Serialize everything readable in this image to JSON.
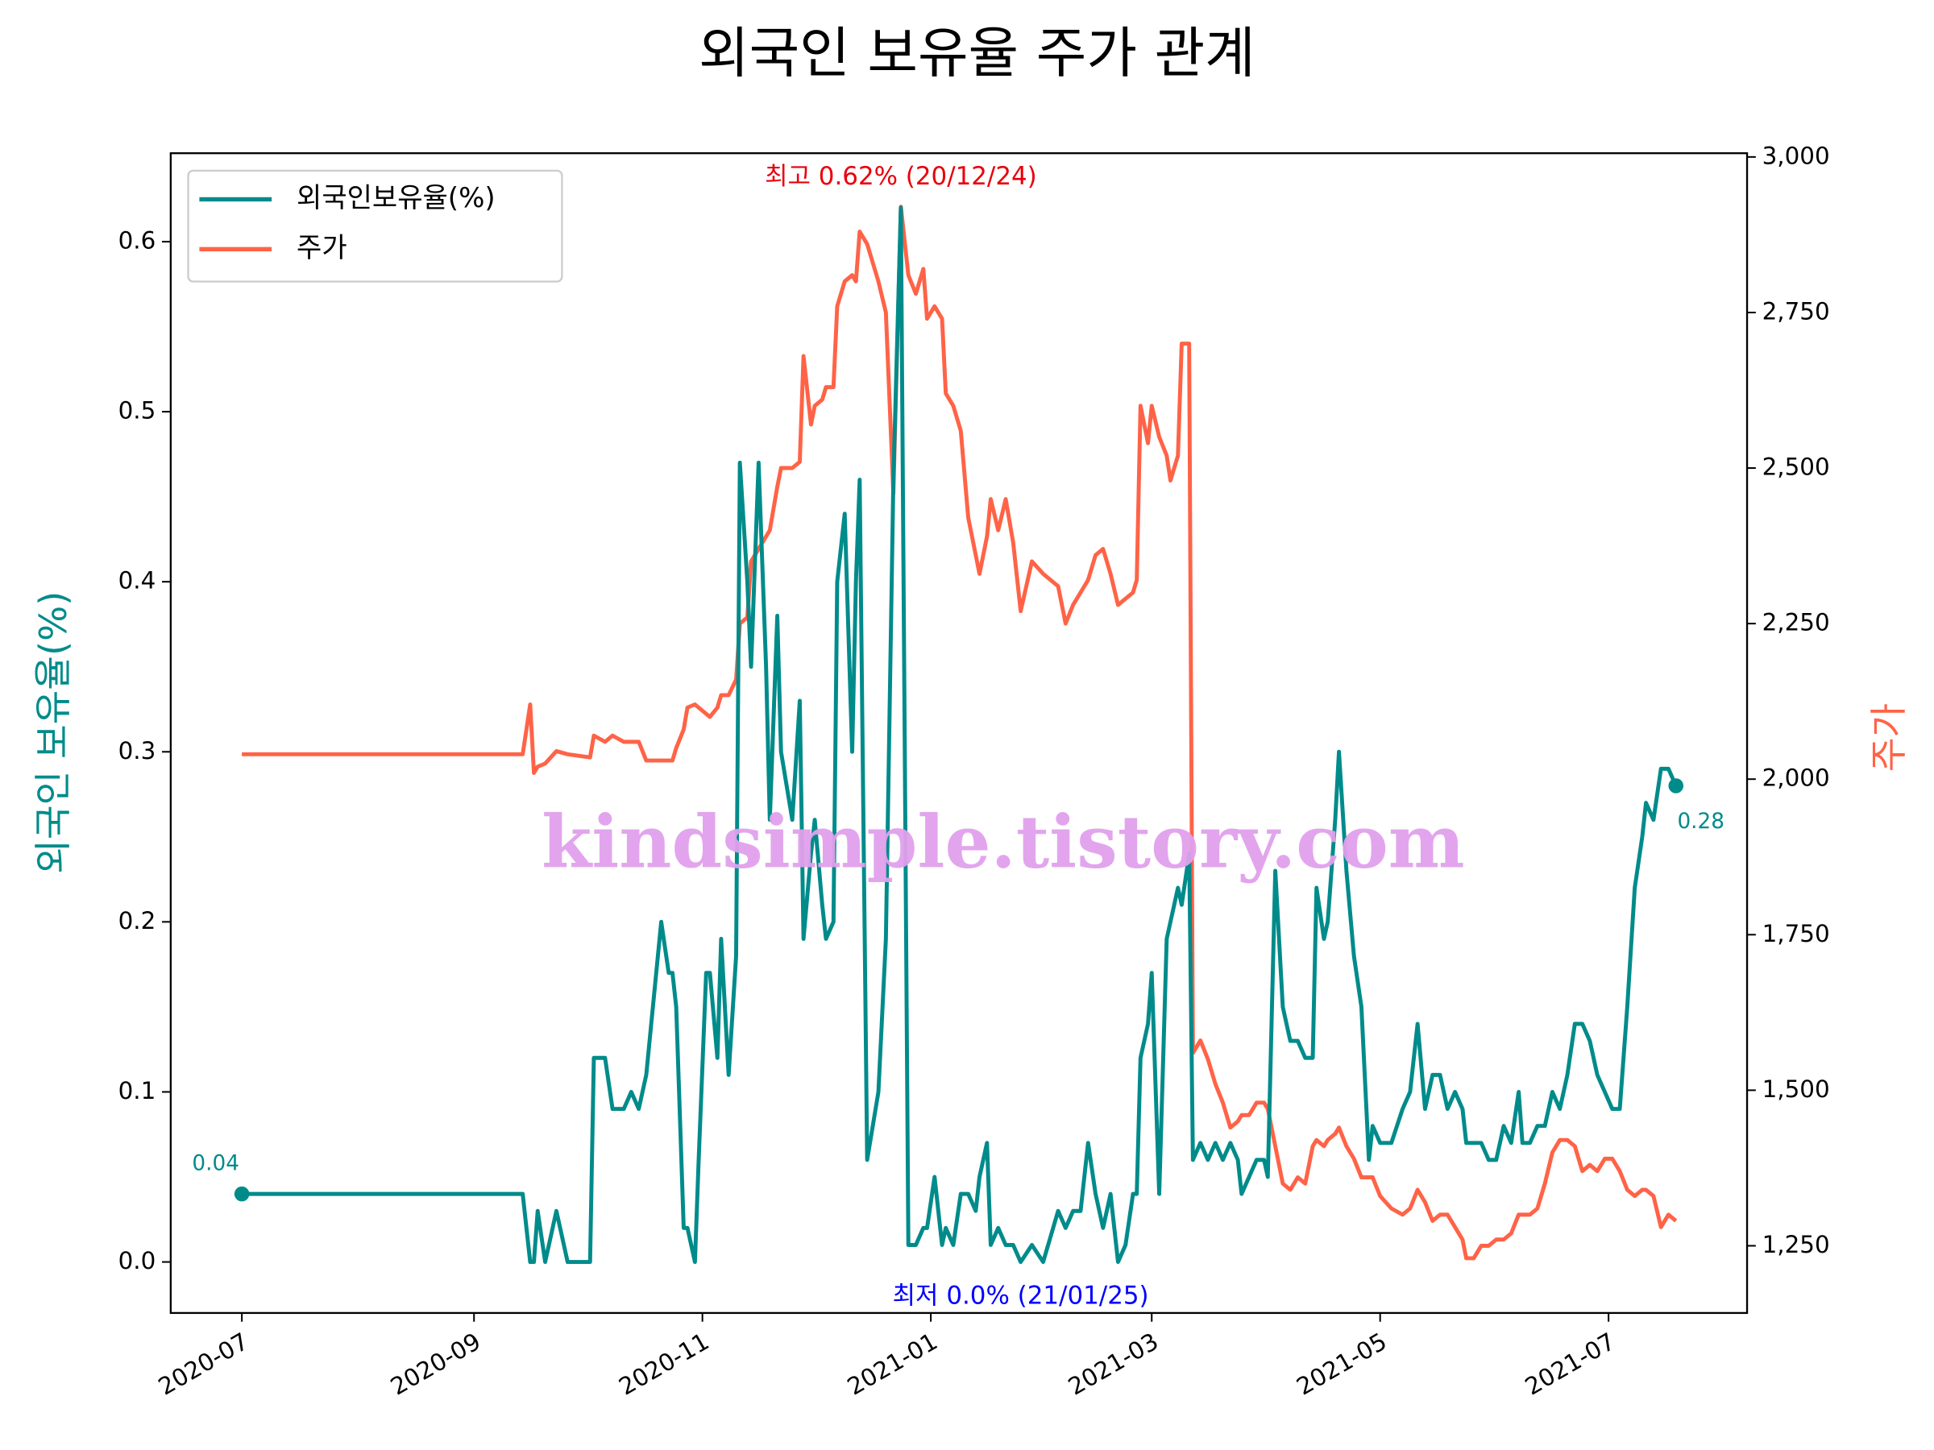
{
  "chart_data": {
    "type": "line",
    "title": "외국인 보유율 주가 관계",
    "ylabel": "외국인 보유율(%)",
    "y2label": "주가",
    "watermark": "kindsimple.tistory.com",
    "legend": "upper left",
    "xlim": [
      "2020-06-12",
      "2021-08-07"
    ],
    "xticks": [
      {
        "value": "2020-07-01",
        "label": "2020-07"
      },
      {
        "value": "2020-09-01",
        "label": "2020-09"
      },
      {
        "value": "2020-11-01",
        "label": "2020-11"
      },
      {
        "value": "2021-01-01",
        "label": "2021-01"
      },
      {
        "value": "2021-03-01",
        "label": "2021-03"
      },
      {
        "value": "2021-05-01",
        "label": "2021-05"
      },
      {
        "value": "2021-07-01",
        "label": "2021-07"
      }
    ],
    "ylim": [
      -0.03,
      0.652
    ],
    "yticks": [
      {
        "value": 0,
        "label": "0.0"
      },
      0.1,
      0.2,
      0.3,
      0.4,
      0.5,
      0.6
    ],
    "y2lim": [
      1142,
      3006
    ],
    "y2ticks": [
      {
        "value": 1250,
        "label": "1,250"
      },
      {
        "value": 1500,
        "label": "1,500"
      },
      {
        "value": 1750,
        "label": "1,750"
      },
      {
        "value": 2000,
        "label": "2,000"
      },
      {
        "value": 2250,
        "label": "2,250"
      },
      {
        "value": 2500,
        "label": "2,500"
      },
      {
        "value": 2750,
        "label": "2,750"
      },
      {
        "value": 3000,
        "label": "3,000"
      }
    ],
    "x": [
      "2020-07-01",
      "2020-09-14",
      "2020-09-16",
      "2020-09-17",
      "2020-09-18",
      "2020-09-20",
      "2020-09-23",
      "2020-09-26",
      "2020-10-02",
      "2020-10-03",
      "2020-10-06",
      "2020-10-08",
      "2020-10-11",
      "2020-10-13",
      "2020-10-15",
      "2020-10-17",
      "2020-10-21",
      "2020-10-23",
      "2020-10-24",
      "2020-10-25",
      "2020-10-27",
      "2020-10-28",
      "2020-10-30",
      "2020-10-31",
      "2020-11-02",
      "2020-11-03",
      "2020-11-05",
      "2020-11-06",
      "2020-11-08",
      "2020-11-10",
      "2020-11-11",
      "2020-11-13",
      "2020-11-14",
      "2020-11-16",
      "2020-11-18",
      "2020-11-19",
      "2020-11-21",
      "2020-11-22",
      "2020-11-25",
      "2020-11-27",
      "2020-11-28",
      "2020-11-30",
      "2020-12-01",
      "2020-12-03",
      "2020-12-04",
      "2020-12-06",
      "2020-12-07",
      "2020-12-09",
      "2020-12-11",
      "2020-12-12",
      "2020-12-13",
      "2020-12-15",
      "2020-12-18",
      "2020-12-20",
      "2020-12-22",
      "2020-12-24",
      "2020-12-26",
      "2020-12-28",
      "2020-12-30",
      "2020-12-31",
      "2021-01-02",
      "2021-01-04",
      "2021-01-05",
      "2021-01-07",
      "2021-01-09",
      "2021-01-11",
      "2021-01-13",
      "2021-01-14",
      "2021-01-16",
      "2021-01-17",
      "2021-01-19",
      "2021-01-21",
      "2021-01-23",
      "2021-01-25",
      "2021-01-28",
      "2021-01-31",
      "2021-02-04",
      "2021-02-06",
      "2021-02-08",
      "2021-02-10",
      "2021-02-12",
      "2021-02-14",
      "2021-02-16",
      "2021-02-18",
      "2021-02-20",
      "2021-02-22",
      "2021-02-24",
      "2021-02-25",
      "2021-02-26",
      "2021-02-28",
      "2021-03-01",
      "2021-03-03",
      "2021-03-05",
      "2021-03-06",
      "2021-03-08",
      "2021-03-09",
      "2021-03-11",
      "2021-03-12",
      "2021-03-14",
      "2021-03-16",
      "2021-03-18",
      "2021-03-20",
      "2021-03-22",
      "2021-03-24",
      "2021-03-25",
      "2021-03-27",
      "2021-03-29",
      "2021-03-31",
      "2021-04-01",
      "2021-04-03",
      "2021-04-05",
      "2021-04-07",
      "2021-04-09",
      "2021-04-11",
      "2021-04-13",
      "2021-04-14",
      "2021-04-16",
      "2021-04-17",
      "2021-04-19",
      "2021-04-20",
      "2021-04-22",
      "2021-04-24",
      "2021-04-26",
      "2021-04-28",
      "2021-04-29",
      "2021-05-01",
      "2021-05-04",
      "2021-05-07",
      "2021-05-09",
      "2021-05-11",
      "2021-05-13",
      "2021-05-15",
      "2021-05-17",
      "2021-05-19",
      "2021-05-21",
      "2021-05-23",
      "2021-05-24",
      "2021-05-26",
      "2021-05-28",
      "2021-05-30",
      "2021-06-01",
      "2021-06-03",
      "2021-06-05",
      "2021-06-07",
      "2021-06-08",
      "2021-06-10",
      "2021-06-12",
      "2021-06-14",
      "2021-06-16",
      "2021-06-18",
      "2021-06-20",
      "2021-06-22",
      "2021-06-24",
      "2021-06-26",
      "2021-06-28",
      "2021-06-30",
      "2021-07-02",
      "2021-07-04",
      "2021-07-06",
      "2021-07-08",
      "2021-07-10",
      "2021-07-11",
      "2021-07-13",
      "2021-07-15",
      "2021-07-17",
      "2021-07-19"
    ],
    "series": [
      {
        "name": "외국인보유율(%)",
        "color": "#008b8b",
        "axis": "y",
        "values": [
          0.04,
          0.04,
          0.0,
          0.0,
          0.03,
          0.0,
          0.03,
          0.0,
          0.0,
          0.12,
          0.12,
          0.09,
          0.09,
          0.1,
          0.09,
          0.11,
          0.2,
          0.17,
          0.17,
          0.15,
          0.02,
          0.02,
          0.0,
          0.06,
          0.17,
          0.17,
          0.12,
          0.19,
          0.11,
          0.18,
          0.47,
          0.4,
          0.35,
          0.47,
          0.35,
          0.26,
          0.38,
          0.3,
          0.26,
          0.33,
          0.19,
          0.24,
          0.26,
          0.21,
          0.19,
          0.2,
          0.4,
          0.44,
          0.3,
          0.4,
          0.46,
          0.06,
          0.1,
          0.19,
          0.46,
          0.62,
          0.01,
          0.01,
          0.02,
          0.02,
          0.05,
          0.01,
          0.02,
          0.01,
          0.04,
          0.04,
          0.03,
          0.05,
          0.07,
          0.01,
          0.02,
          0.01,
          0.01,
          0.0,
          0.01,
          0.0,
          0.03,
          0.02,
          0.03,
          0.03,
          0.07,
          0.04,
          0.02,
          0.04,
          0.0,
          0.01,
          0.04,
          0.04,
          0.12,
          0.14,
          0.17,
          0.04,
          0.19,
          0.2,
          0.22,
          0.21,
          0.24,
          0.06,
          0.07,
          0.06,
          0.07,
          0.06,
          0.07,
          0.06,
          0.04,
          0.05,
          0.06,
          0.06,
          0.05,
          0.23,
          0.15,
          0.13,
          0.13,
          0.12,
          0.12,
          0.22,
          0.19,
          0.2,
          0.26,
          0.3,
          0.23,
          0.18,
          0.15,
          0.06,
          0.08,
          0.07,
          0.07,
          0.09,
          0.1,
          0.14,
          0.09,
          0.11,
          0.11,
          0.09,
          0.1,
          0.09,
          0.07,
          0.07,
          0.07,
          0.06,
          0.06,
          0.08,
          0.07,
          0.1,
          0.07,
          0.07,
          0.08,
          0.08,
          0.1,
          0.09,
          0.11,
          0.14,
          0.14,
          0.13,
          0.11,
          0.1,
          0.09,
          0.09,
          0.15,
          0.22,
          0.25,
          0.27,
          0.26,
          0.29,
          0.29,
          0.28
        ]
      },
      {
        "name": "주가",
        "color": "#ff6347",
        "axis": "y2",
        "values": [
          2040,
          2040,
          2120,
          2010,
          2020,
          2025,
          2045,
          2040,
          2035,
          2070,
          2060,
          2070,
          2060,
          2060,
          2060,
          2030,
          2030,
          2030,
          2030,
          2050,
          2080,
          2115,
          2120,
          2115,
          2105,
          2100,
          2115,
          2135,
          2135,
          2160,
          2250,
          2260,
          2350,
          2370,
          2390,
          2400,
          2470,
          2500,
          2500,
          2510,
          2680,
          2570,
          2600,
          2610,
          2630,
          2630,
          2760,
          2800,
          2810,
          2800,
          2880,
          2860,
          2800,
          2750,
          2460,
          2920,
          2810,
          2780,
          2820,
          2740,
          2760,
          2740,
          2620,
          2600,
          2560,
          2420,
          2360,
          2330,
          2390,
          2450,
          2400,
          2450,
          2380,
          2270,
          2350,
          2330,
          2310,
          2250,
          2280,
          2300,
          2320,
          2360,
          2370,
          2330,
          2280,
          2290,
          2300,
          2320,
          2600,
          2540,
          2600,
          2550,
          2520,
          2480,
          2520,
          2700,
          2700,
          1560,
          1580,
          1550,
          1510,
          1480,
          1440,
          1450,
          1460,
          1460,
          1480,
          1480,
          1470,
          1410,
          1350,
          1340,
          1360,
          1350,
          1410,
          1420,
          1410,
          1420,
          1430,
          1440,
          1410,
          1390,
          1360,
          1360,
          1360,
          1330,
          1310,
          1300,
          1310,
          1340,
          1320,
          1290,
          1300,
          1300,
          1280,
          1260,
          1230,
          1230,
          1250,
          1250,
          1260,
          1260,
          1270,
          1300,
          1300,
          1300,
          1310,
          1350,
          1400,
          1420,
          1420,
          1410,
          1370,
          1380,
          1370,
          1390,
          1390,
          1370,
          1340,
          1330,
          1340,
          1340,
          1330,
          1280,
          1300,
          1290
        ]
      }
    ],
    "annotations": [
      {
        "text": "최고 0.62% (20/12/24)",
        "x": "2020-12-24",
        "y": 0.62,
        "color": "#e8000b",
        "position": "above"
      },
      {
        "text": "최저 0.0% (21/01/25)",
        "x": "2021-01-25",
        "y": 0.0,
        "color": "#0000ff",
        "position": "below"
      },
      {
        "text": "0.04",
        "x": "2020-07-01",
        "y": 0.04,
        "color": "#008b8b",
        "position": "above-left",
        "marker": true
      },
      {
        "text": "0.28",
        "x": "2021-07-19",
        "y": 0.28,
        "color": "#008b8b",
        "position": "below-right",
        "marker": true
      }
    ]
  }
}
